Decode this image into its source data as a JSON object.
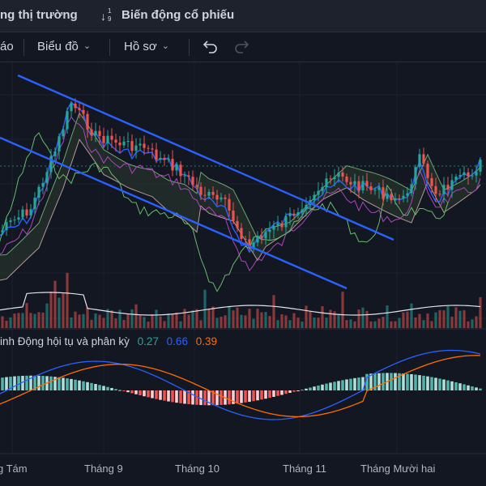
{
  "tabs": [
    {
      "label": "ng thị trường"
    },
    {
      "label": "Biến động cổ phiếu"
    }
  ],
  "sort_icon_glyph": "↓",
  "sort_icon_top": "1",
  "sort_icon_bottom": "9",
  "toolbar": {
    "item0": "áo",
    "item1": "Biểu đồ",
    "item2": "Hồ sơ",
    "undo_icon": "undo-icon",
    "redo_icon": "redo-icon"
  },
  "macd": {
    "title": "inh Động hội tụ và phân kỳ",
    "v1": "0.27",
    "v2": "0.66",
    "v3": "0.39",
    "colors": {
      "v1": "#26a69a",
      "v2": "#2962ff",
      "v3": "#ff6d00"
    }
  },
  "x_labels": [
    "g Tám",
    "Tháng 9",
    "Tháng 10",
    "Tháng 11",
    "Tháng Mười hai"
  ],
  "colors": {
    "up": "#26a69a",
    "down": "#ef5350",
    "trendline": "#2962ff",
    "background": "#131722",
    "panel": "#1e222d"
  }
}
